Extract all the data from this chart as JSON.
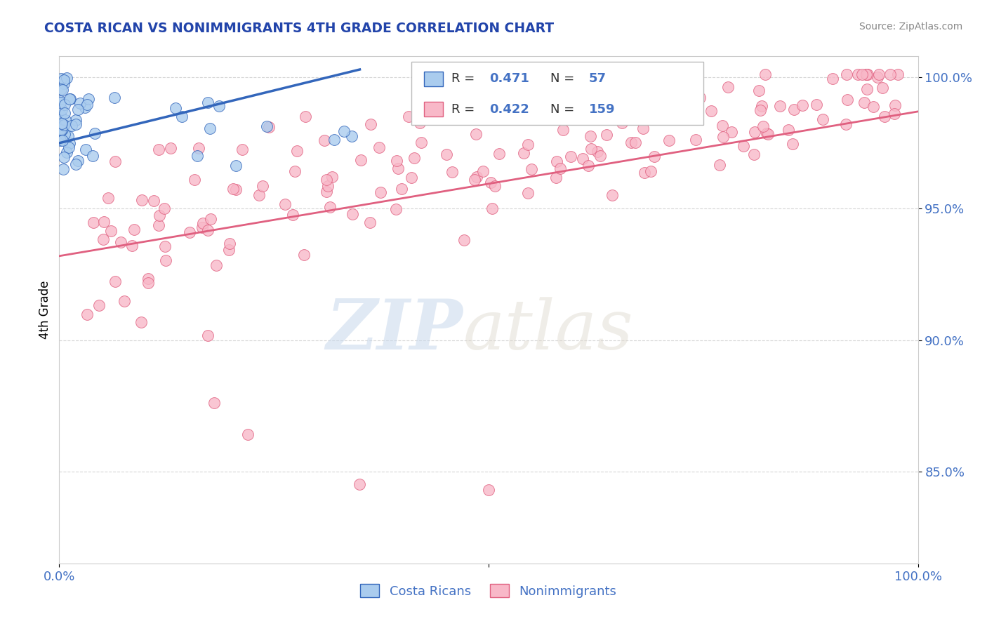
{
  "title": "COSTA RICAN VS NONIMMIGRANTS 4TH GRADE CORRELATION CHART",
  "source": "Source: ZipAtlas.com",
  "ylabel": "4th Grade",
  "xlim": [
    0.0,
    1.0
  ],
  "ylim": [
    0.815,
    1.008
  ],
  "yticks": [
    0.85,
    0.9,
    0.95,
    1.0
  ],
  "ytick_labels": [
    "85.0%",
    "90.0%",
    "95.0%",
    "100.0%"
  ],
  "costa_rican_R": 0.471,
  "costa_rican_N": 57,
  "nonimmigrant_R": 0.422,
  "nonimmigrant_N": 159,
  "blue_color": "#aaccee",
  "blue_line_color": "#3366bb",
  "pink_color": "#f8b8c8",
  "pink_line_color": "#e06080",
  "legend_label_1": "Costa Ricans",
  "legend_label_2": "Nonimmigrants"
}
